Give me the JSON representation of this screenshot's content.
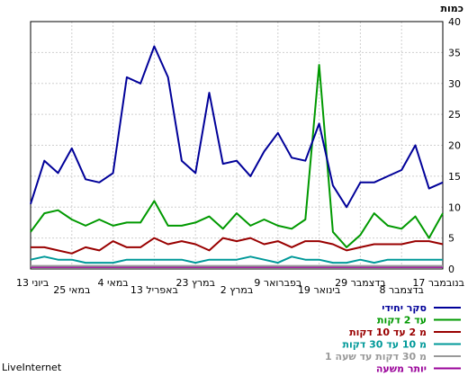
{
  "chart_data": {
    "type": "line",
    "ylabel": "כמות",
    "ylim": [
      0,
      40
    ],
    "yticks": [
      0,
      5,
      10,
      15,
      20,
      25,
      30,
      35,
      40
    ],
    "grid": true,
    "legend_position": "bottom-right",
    "x_tick_labels": [
      "17 בנובמבר",
      "8 בדצמבר",
      "29 בדצמבר",
      "19 בינואר",
      "9 בפברואר",
      "2 במרץ",
      "23 במרץ",
      "13 באפריל",
      "4 במאי",
      "25 במאי",
      "13 ביוני"
    ],
    "series": [
      {
        "name": "סקר יחידי",
        "color": "#000099",
        "values": [
          10.5,
          17.5,
          15.5,
          19.5,
          14.5,
          14,
          15.5,
          31,
          30,
          36,
          31,
          17.5,
          15.5,
          28.5,
          17,
          17.5,
          15,
          19,
          22,
          18,
          17.5,
          23.5,
          13.5,
          10,
          14,
          14,
          15,
          16,
          20,
          13,
          14
        ]
      },
      {
        "name": "עד 2 דקות",
        "color": "#009900",
        "values": [
          6,
          9,
          9.5,
          8,
          7,
          8,
          7,
          7.5,
          7.5,
          11,
          7,
          7,
          7.5,
          8.5,
          6.5,
          9,
          7,
          8,
          7,
          6.5,
          8,
          33,
          6,
          3.5,
          5.5,
          9,
          7,
          6.5,
          8.5,
          5,
          9
        ]
      },
      {
        "name": "מ 2 עד 10 דקות",
        "color": "#990000",
        "values": [
          3.5,
          3.5,
          3,
          2.5,
          3.5,
          3,
          4.5,
          3.5,
          3.5,
          5,
          4,
          4.5,
          4,
          3,
          5,
          4.5,
          5,
          4,
          4.5,
          3.5,
          4.5,
          4.5,
          4,
          3,
          3.5,
          4,
          4,
          4,
          4.5,
          4.5,
          4
        ]
      },
      {
        "name": "מ 10 עד 30 דקות",
        "color": "#009999",
        "values": [
          1.5,
          2,
          1.5,
          1.5,
          1,
          1,
          1,
          1.5,
          1.5,
          1.5,
          1.5,
          1.5,
          1,
          1.5,
          1.5,
          1.5,
          2,
          1.5,
          1,
          2,
          1.5,
          1.5,
          1,
          1,
          1.5,
          1,
          1.5,
          1.5,
          1.5,
          1.5,
          1.5
        ]
      },
      {
        "name": "מ 30 דקות עד שעה 1",
        "color": "#999999",
        "values": [
          0.5,
          0.5,
          0.5,
          0.5,
          0.5,
          0.5,
          0.5,
          0.5,
          0.5,
          0.5,
          0.5,
          0.5,
          0.5,
          0.5,
          0.5,
          0.5,
          0.5,
          0.5,
          0.5,
          0.5,
          0.5,
          0.5,
          0.5,
          0.5,
          0.5,
          0.5,
          0.5,
          0.5,
          0.5,
          0.5,
          0.5
        ]
      },
      {
        "name": "יותר משעה",
        "color": "#990099",
        "values": [
          0.3,
          0.3,
          0.3,
          0.3,
          0.3,
          0.3,
          0.3,
          0.3,
          0.3,
          0.3,
          0.3,
          0.3,
          0.3,
          0.3,
          0.3,
          0.3,
          0.3,
          0.3,
          0.3,
          0.3,
          0.3,
          0.3,
          0.3,
          0.3,
          0.3,
          0.3,
          0.3,
          0.3,
          0.3,
          0.3,
          0.3
        ]
      }
    ]
  },
  "footer": {
    "brand": "LiveInternet"
  }
}
